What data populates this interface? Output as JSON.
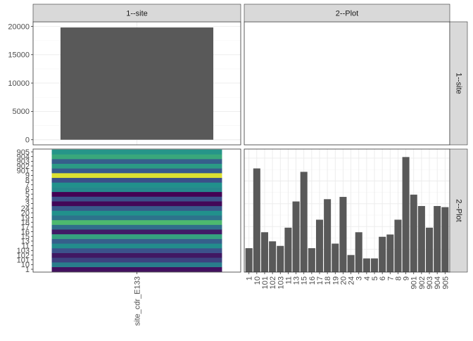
{
  "chart_data": {
    "type": "facet_grid",
    "facet_columns": [
      "1--site",
      "2--Plot"
    ],
    "facet_rows": [
      "1--site",
      "2--Plot"
    ],
    "panels": {
      "site_site": {
        "type": "bar",
        "categories": [
          ""
        ],
        "values": [
          19800
        ],
        "ylim": [
          -900,
          20800
        ],
        "y_ticks": [
          0,
          5000,
          10000,
          15000,
          20000
        ]
      },
      "site_plot": {
        "type": "empty"
      },
      "plot_site": {
        "type": "heatmap",
        "x_categories": [
          "site_cdr_E133"
        ],
        "y_categories": [
          "1",
          "10",
          "101",
          "102",
          "103",
          "11",
          "13",
          "15",
          "16",
          "17",
          "18",
          "19",
          "20",
          "24",
          "3",
          "4",
          "5",
          "6",
          "7",
          "8",
          "9",
          "901",
          "902",
          "903",
          "904",
          "905"
        ],
        "levels": [
          0.05,
          0.42,
          0.2,
          0.07,
          0.25,
          0.48,
          0.3,
          0.58,
          0.08,
          0.36,
          0.68,
          0.38,
          0.5,
          0.28,
          0.02,
          0.24,
          0.0,
          0.46,
          0.5,
          0.24,
          0.95,
          0.28,
          0.54,
          0.3,
          0.6,
          0.52
        ],
        "color_scale": [
          "#440154",
          "#3b528b",
          "#21918c",
          "#5ec962",
          "#fde725"
        ]
      },
      "plot_plot": {
        "type": "bar",
        "categories": [
          "1",
          "10",
          "101",
          "102",
          "103",
          "11",
          "13",
          "15",
          "16",
          "17",
          "18",
          "19",
          "20",
          "24",
          "3",
          "4",
          "5",
          "6",
          "7",
          "8",
          "9",
          "901",
          "902",
          "903",
          "904",
          "905"
        ],
        "values": [
          2.1,
          9.1,
          3.5,
          2.7,
          2.3,
          3.9,
          6.2,
          8.8,
          2.1,
          4.6,
          6.4,
          2.5,
          6.6,
          1.5,
          3.5,
          1.2,
          1.2,
          3.1,
          3.3,
          4.6,
          10.1,
          6.8,
          5.8,
          3.9,
          5.8,
          5.7
        ],
        "ylim": [
          0,
          10.8
        ]
      }
    },
    "x_tick_label_bottom_left": "site_cdr_E133",
    "grid": true,
    "bar_color": "#595959"
  }
}
